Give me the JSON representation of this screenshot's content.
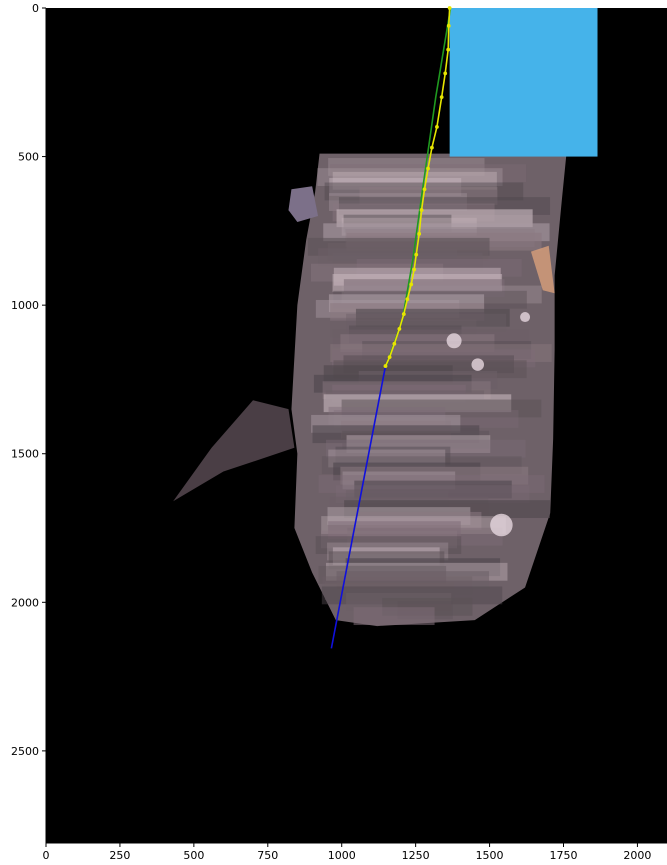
{
  "axes": {
    "x_ticks": [
      0,
      250,
      500,
      750,
      1000,
      1250,
      1500,
      1750,
      2000
    ],
    "y_ticks": [
      0,
      500,
      1000,
      1500,
      2000,
      2500
    ],
    "x_range": [
      0,
      2100
    ],
    "y_range": [
      0,
      2810
    ],
    "y_inverted": true,
    "background_color": "#000000"
  },
  "overlays": {
    "cyan_rectangle": {
      "x0": 1365,
      "x1": 1865,
      "y0": 0,
      "y1": 500,
      "color": "#45b3ea"
    },
    "green_path": {
      "color": "#1f9a1f",
      "points": [
        [
          1368,
          0
        ],
        [
          1318,
          300
        ],
        [
          1275,
          600
        ],
        [
          1240,
          850
        ],
        [
          1205,
          1050
        ],
        [
          1150,
          1205
        ]
      ]
    },
    "yellow_path": {
      "color": "#e6e600",
      "points": [
        [
          1365,
          0
        ],
        [
          1362,
          60
        ],
        [
          1360,
          140
        ],
        [
          1350,
          220
        ],
        [
          1338,
          300
        ],
        [
          1322,
          400
        ],
        [
          1305,
          470
        ],
        [
          1292,
          540
        ],
        [
          1280,
          610
        ],
        [
          1270,
          680
        ],
        [
          1262,
          760
        ],
        [
          1252,
          830
        ],
        [
          1245,
          880
        ],
        [
          1235,
          930
        ],
        [
          1222,
          980
        ],
        [
          1210,
          1030
        ],
        [
          1195,
          1080
        ],
        [
          1178,
          1130
        ],
        [
          1162,
          1175
        ],
        [
          1148,
          1205
        ]
      ]
    },
    "blue_line": {
      "color": "#1010dd",
      "points": [
        [
          1148,
          1205
        ],
        [
          965,
          2155
        ]
      ]
    }
  },
  "mosaic": {
    "colors": [
      "#6c5f66",
      "#8a7880",
      "#4f474d",
      "#a99aa2",
      "#7d6b76",
      "#5c5257",
      "#c8b7be"
    ]
  }
}
